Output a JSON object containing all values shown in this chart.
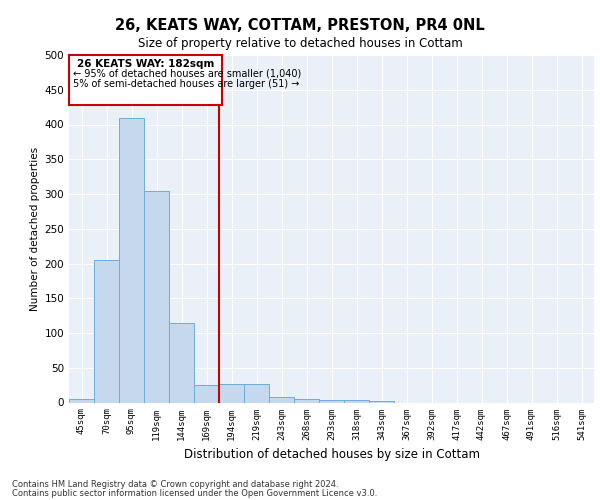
{
  "title_line1": "26, KEATS WAY, COTTAM, PRESTON, PR4 0NL",
  "title_line2": "Size of property relative to detached houses in Cottam",
  "xlabel": "Distribution of detached houses by size in Cottam",
  "ylabel": "Number of detached properties",
  "footer_line1": "Contains HM Land Registry data © Crown copyright and database right 2024.",
  "footer_line2": "Contains public sector information licensed under the Open Government Licence v3.0.",
  "bin_labels": [
    "45sqm",
    "70sqm",
    "95sqm",
    "119sqm",
    "144sqm",
    "169sqm",
    "194sqm",
    "219sqm",
    "243sqm",
    "268sqm",
    "293sqm",
    "318sqm",
    "343sqm",
    "367sqm",
    "392sqm",
    "417sqm",
    "442sqm",
    "467sqm",
    "491sqm",
    "516sqm",
    "541sqm"
  ],
  "bar_values": [
    5,
    205,
    410,
    305,
    115,
    25,
    27,
    27,
    8,
    5,
    3,
    3,
    2,
    0,
    0,
    0,
    0,
    0,
    0,
    0,
    0
  ],
  "bar_color": "#c5d8ee",
  "bar_edge_color": "#6baed6",
  "vline_color": "#cc0000",
  "vline_label": "26 KEATS WAY: 182sqm",
  "annotation_line2": "← 95% of detached houses are smaller (1,040)",
  "annotation_line3": "5% of semi-detached houses are larger (51) →",
  "annotation_box_color": "#cc0000",
  "ylim": [
    0,
    500
  ],
  "yticks": [
    0,
    50,
    100,
    150,
    200,
    250,
    300,
    350,
    400,
    450,
    500
  ],
  "bg_color": "#eaf0f8",
  "grid_color": "#ffffff"
}
